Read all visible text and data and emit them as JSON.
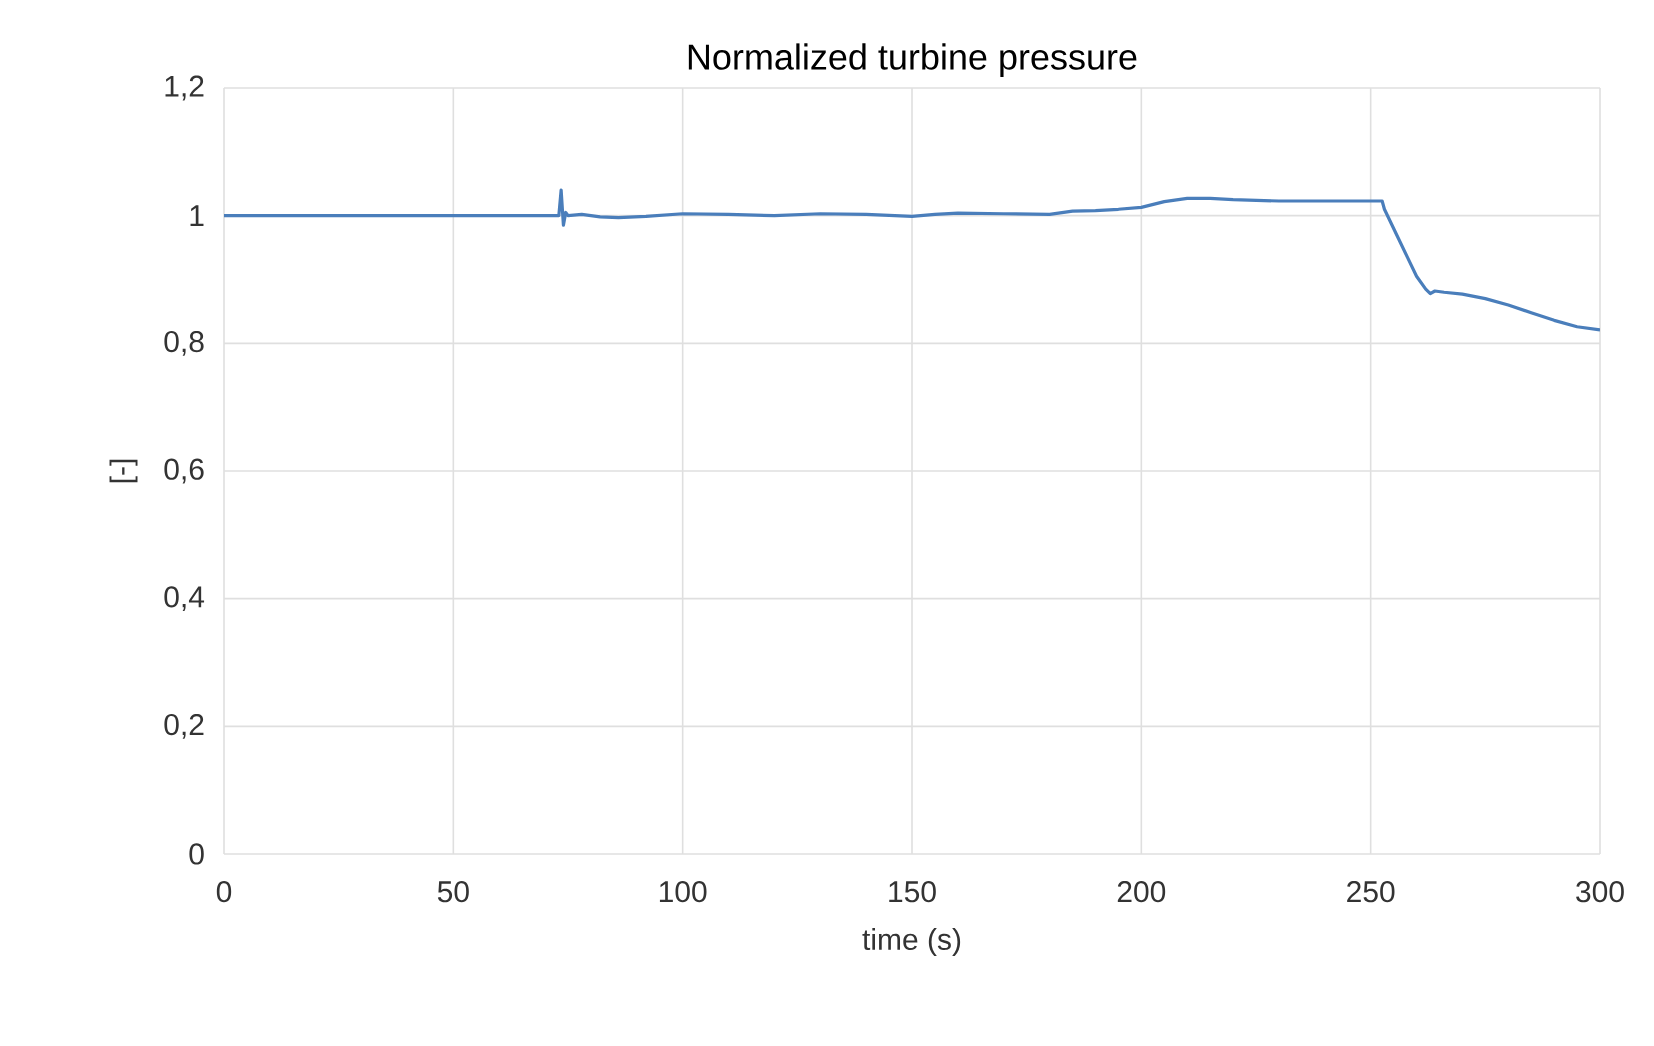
{
  "chart_data": {
    "type": "line",
    "title": "Normalized turbine pressure",
    "xlabel": "time (s)",
    "ylabel": "[-]",
    "xlim": [
      0,
      300
    ],
    "xticks": [
      0,
      50,
      100,
      150,
      200,
      250,
      300
    ],
    "ylim": [
      0,
      1.2
    ],
    "yticks": [
      0,
      {
        "value": 0.2,
        "label": "0,2"
      },
      {
        "value": 0.4,
        "label": "0,4"
      },
      {
        "value": 0.6,
        "label": "0,6"
      },
      {
        "value": 0.8,
        "label": "0,8"
      },
      1,
      {
        "value": 1.2,
        "label": "1,2"
      }
    ],
    "grid": true,
    "marker": "none",
    "line_style": "solid",
    "series": [
      {
        "color": "#4a7ebb",
        "x": [
          0,
          20,
          40,
          60,
          72,
          73,
          73.5,
          74,
          74.5,
          75,
          78,
          82,
          86,
          92,
          100,
          110,
          120,
          130,
          140,
          150,
          155,
          160,
          170,
          180,
          185,
          190,
          195,
          200,
          205,
          210,
          215,
          220,
          230,
          240,
          250,
          252.5,
          253,
          254,
          256,
          258,
          260,
          262,
          263,
          264,
          266,
          270,
          275,
          280,
          285,
          290,
          295,
          300
        ],
        "values": [
          1.0,
          1.0,
          1.0,
          1.0,
          1.0,
          1.0,
          1.04,
          0.985,
          1.005,
          1.0,
          1.002,
          0.998,
          0.997,
          0.999,
          1.003,
          1.002,
          1.0,
          1.003,
          1.002,
          0.999,
          1.002,
          1.004,
          1.003,
          1.002,
          1.007,
          1.008,
          1.01,
          1.013,
          1.022,
          1.027,
          1.027,
          1.025,
          1.023,
          1.023,
          1.023,
          1.023,
          1.01,
          0.995,
          0.965,
          0.935,
          0.905,
          0.885,
          0.878,
          0.882,
          0.88,
          0.877,
          0.87,
          0.86,
          0.848,
          0.836,
          0.826,
          0.821
        ]
      }
    ]
  }
}
